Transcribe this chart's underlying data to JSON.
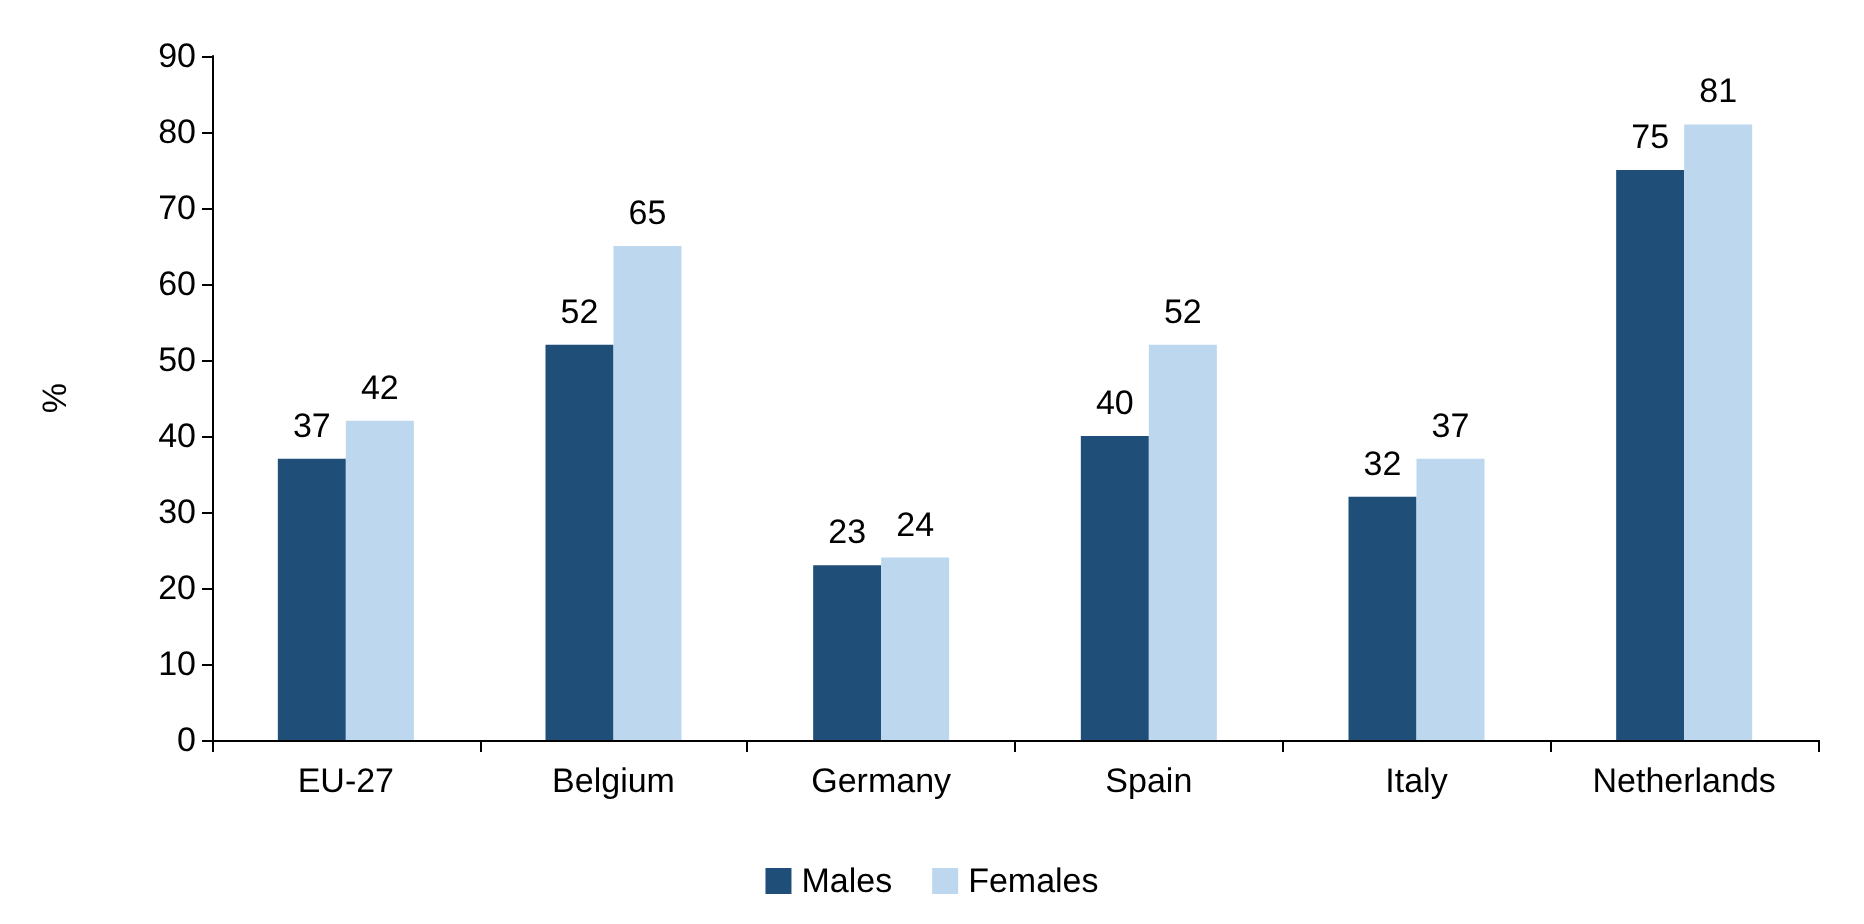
{
  "chart_data": {
    "type": "bar",
    "ylabel": "%",
    "categories": [
      "EU-27",
      "Belgium",
      "Germany",
      "Spain",
      "Italy",
      "Netherlands"
    ],
    "series": [
      {
        "name": "Males",
        "color": "#1f4e79",
        "values": [
          37,
          52,
          23,
          40,
          32,
          75
        ]
      },
      {
        "name": "Females",
        "color": "#bdd7ee",
        "values": [
          42,
          65,
          24,
          52,
          37,
          81
        ]
      }
    ],
    "ylim": [
      0,
      90
    ],
    "yticks": [
      0,
      10,
      20,
      30,
      40,
      50,
      60,
      70,
      80,
      90
    ],
    "grid": false,
    "legend": "bottom",
    "data_labels": true
  }
}
